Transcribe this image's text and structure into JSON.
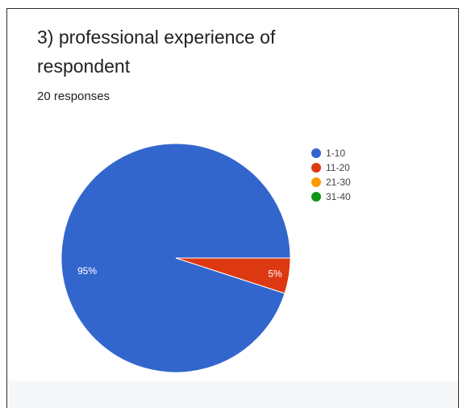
{
  "header": {
    "title": "3) professional experience of respondent",
    "responses": "20 responses"
  },
  "chart_data": {
    "type": "pie",
    "categories": [
      "1-10",
      "11-20",
      "21-30",
      "31-40"
    ],
    "values": [
      95,
      5,
      0,
      0
    ],
    "data_labels": [
      "95%",
      "5%",
      "",
      ""
    ],
    "colors": [
      "#3366cc",
      "#dc3912",
      "#ff9900",
      "#109618"
    ],
    "legend": "right"
  }
}
